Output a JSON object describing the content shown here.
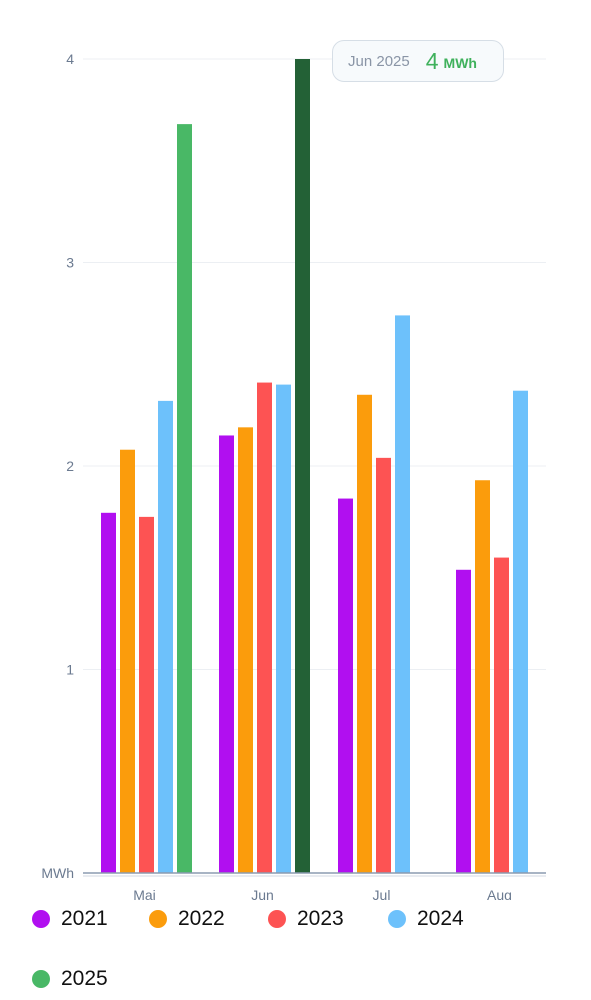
{
  "chart_data": {
    "type": "bar",
    "categories": [
      "Mai",
      "Jun",
      "Jul",
      "Aug"
    ],
    "series": [
      {
        "name": "2021",
        "color": "#b10ff0",
        "values": [
          1.77,
          2.15,
          1.84,
          1.49
        ]
      },
      {
        "name": "2022",
        "color": "#fb9c0c",
        "values": [
          2.08,
          2.19,
          2.35,
          1.93
        ]
      },
      {
        "name": "2023",
        "color": "#fd5353",
        "values": [
          1.75,
          2.41,
          2.04,
          1.55
        ]
      },
      {
        "name": "2024",
        "color": "#6dc1fb",
        "values": [
          2.32,
          2.4,
          2.74,
          2.37
        ]
      },
      {
        "name": "2025",
        "color": "#49b866",
        "values": [
          3.68,
          4.0,
          null,
          null
        ]
      }
    ],
    "highlight": {
      "series": "2025",
      "category": "Jun",
      "color": "#236136"
    },
    "y_ticks": [
      "1",
      "2",
      "3",
      "4"
    ],
    "y_unit": "MWh",
    "ylim": [
      0,
      4
    ],
    "grid": true,
    "legend_position": "bottom"
  },
  "tooltip": {
    "period": "Jun 2025",
    "value": "4",
    "unit": "MWh"
  },
  "legend": [
    {
      "label": "2021",
      "color": "#b10ff0"
    },
    {
      "label": "2022",
      "color": "#fb9c0c"
    },
    {
      "label": "2023",
      "color": "#fd5353"
    },
    {
      "label": "2024",
      "color": "#6dc1fb"
    },
    {
      "label": "2025",
      "color": "#49b866"
    }
  ]
}
